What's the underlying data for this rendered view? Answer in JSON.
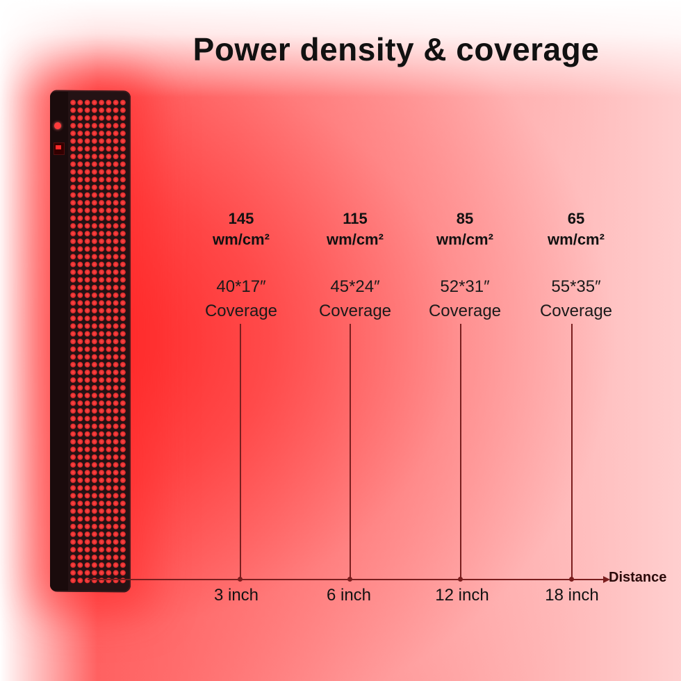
{
  "title": "Power density & coverage",
  "axis_label": "Distance",
  "columns": [
    {
      "power": "145",
      "unit": "wm/cm²",
      "size": "40*17″",
      "coverage": "Coverage",
      "distance": "3 inch"
    },
    {
      "power": "115",
      "unit": "wm/cm²",
      "size": "45*24″",
      "coverage": "Coverage",
      "distance": "6 inch"
    },
    {
      "power": "85",
      "unit": "wm/cm²",
      "size": "52*31″",
      "coverage": "Coverage",
      "distance": "12 inch"
    },
    {
      "power": "65",
      "unit": "wm/cm²",
      "size": "55*35″",
      "coverage": "Coverage",
      "distance": "18 inch"
    }
  ],
  "colors": {
    "accent": "#7a1e1e",
    "glow": "#ff3a3a"
  }
}
